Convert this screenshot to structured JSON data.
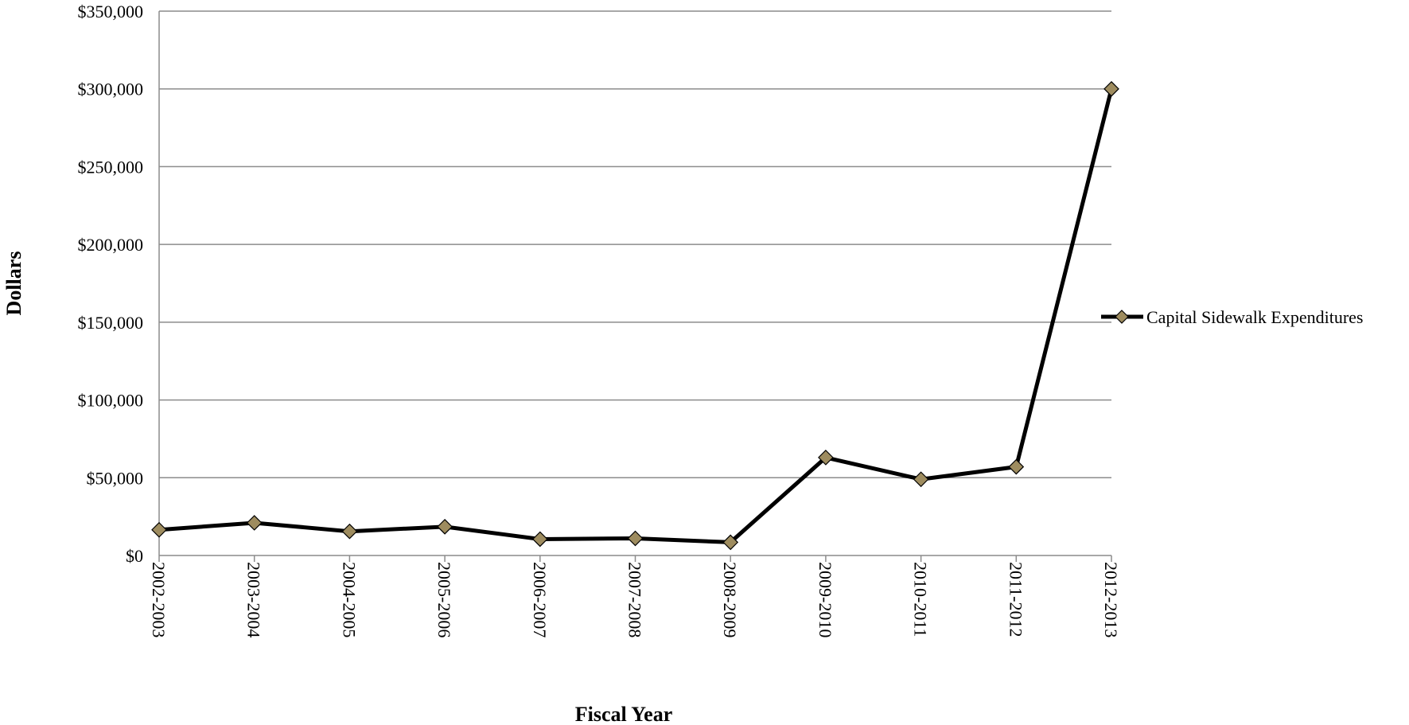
{
  "chart_data": {
    "type": "line",
    "categories": [
      "2002-2003",
      "2003-2004",
      "2004-2005",
      "2005-2006",
      "2006-2007",
      "2007-2008",
      "2008-2009",
      "2009-2010",
      "2010-2011",
      "2011-2012",
      "2012-2013"
    ],
    "series": [
      {
        "name": "Capital Sidewalk Expenditures",
        "values": [
          16500,
          21000,
          15500,
          18500,
          10500,
          11000,
          8500,
          63000,
          49000,
          57000,
          300000
        ],
        "line_color": "#000000",
        "marker": "diamond",
        "marker_color": "#9e8c5f"
      }
    ],
    "xlabel": "Fiscal Year",
    "ylabel": "Dollars",
    "ylim": [
      0,
      350000
    ],
    "y_ticks": [
      0,
      50000,
      100000,
      150000,
      200000,
      250000,
      300000,
      350000
    ],
    "y_tick_labels": [
      "$0",
      "$50,000",
      "$100,000",
      "$150,000",
      "$200,000",
      "$250,000",
      "$300,000",
      "$350,000"
    ],
    "grid": true,
    "legend_position": "right"
  }
}
